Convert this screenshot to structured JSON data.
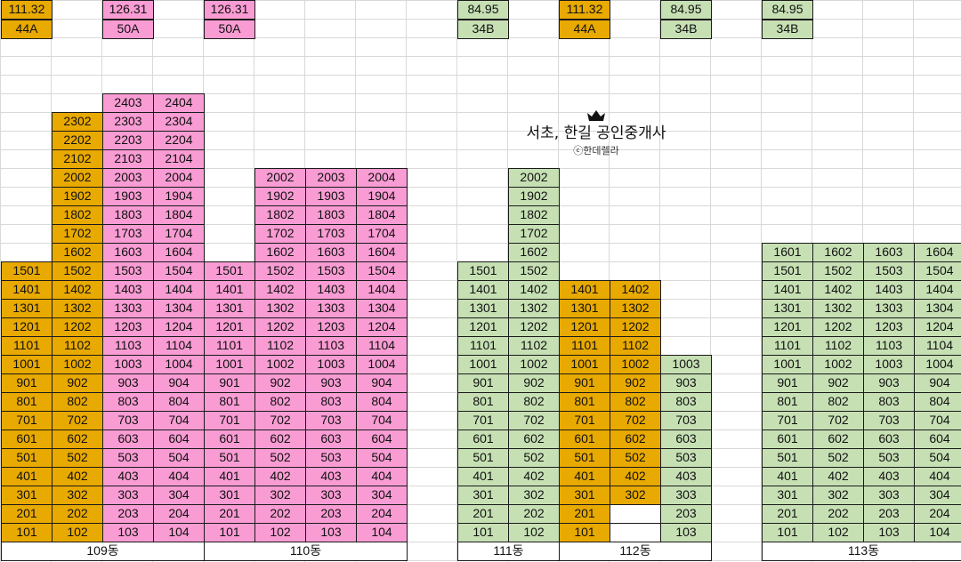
{
  "colors": {
    "orange": "#e8a900",
    "pink": "#f99cd4",
    "green": "#c6e0b4",
    "grid_line": "#d9d9d9",
    "border": "#1a1a1a"
  },
  "type_headers": [
    {
      "area": "111.32",
      "type": "44A",
      "color": "orange"
    },
    {
      "area": "126.31",
      "type": "50A",
      "color": "pink"
    },
    {
      "area": "126.31",
      "type": "50A",
      "color": "pink"
    },
    {
      "area": "84.95",
      "type": "34B",
      "color": "green"
    },
    {
      "area": "111.32",
      "type": "44A",
      "color": "orange"
    },
    {
      "area": "84.95",
      "type": "34B",
      "color": "green"
    },
    {
      "area": "84.95",
      "type": "34B",
      "color": "green"
    }
  ],
  "logo": {
    "crown_icon": "crown-icon",
    "title": "서초, 한길 공인중개사",
    "subtitle": "ⓒ한데렐라"
  },
  "buildings": [
    {
      "label": "109동",
      "columns": [
        {
          "units": [
            "101",
            "201",
            "301",
            "401",
            "501",
            "601",
            "701",
            "801",
            "901",
            "1001",
            "1101",
            "1201",
            "1301",
            "1401",
            "1501"
          ],
          "colors": [
            "orange"
          ]
        },
        {
          "units": [
            "102",
            "202",
            "302",
            "402",
            "502",
            "602",
            "702",
            "802",
            "902",
            "1002",
            "1102",
            "1202",
            "1302",
            "1402",
            "1502",
            "1602",
            "1702",
            "1802",
            "1902",
            "2002",
            "2102",
            "2202",
            "2302"
          ],
          "colors": [
            "orange"
          ]
        },
        {
          "units": [
            "103",
            "203",
            "303",
            "403",
            "503",
            "603",
            "703",
            "803",
            "903",
            "1003",
            "1103",
            "1203",
            "1303",
            "1403",
            "1503",
            "1603",
            "1703",
            "1803",
            "1903",
            "2003",
            "2103",
            "2203",
            "2303",
            "2403"
          ],
          "colors": [
            "pink"
          ]
        },
        {
          "units": [
            "104",
            "204",
            "304",
            "404",
            "504",
            "604",
            "704",
            "804",
            "904",
            "1004",
            "1104",
            "1204",
            "1304",
            "1404",
            "1504",
            "1604",
            "1704",
            "1804",
            "1904",
            "2004",
            "2104",
            "2204",
            "2304",
            "2404"
          ],
          "colors": [
            "pink"
          ]
        }
      ]
    },
    {
      "label": "110동",
      "columns": [
        {
          "units": [
            "101",
            "201",
            "301",
            "401",
            "501",
            "601",
            "701",
            "801",
            "901",
            "1001",
            "1101",
            "1201",
            "1301",
            "1401",
            "1501"
          ],
          "colors": [
            "pink"
          ]
        },
        {
          "units": [
            "102",
            "202",
            "302",
            "402",
            "502",
            "602",
            "702",
            "802",
            "902",
            "1002",
            "1102",
            "1202",
            "1302",
            "1402",
            "1502",
            "1602",
            "1702",
            "1802",
            "1902",
            "2002"
          ],
          "colors": [
            "pink"
          ]
        },
        {
          "units": [
            "103",
            "203",
            "303",
            "403",
            "503",
            "603",
            "703",
            "803",
            "903",
            "1003",
            "1103",
            "1203",
            "1303",
            "1403",
            "1503",
            "1603",
            "1703",
            "1803",
            "1903",
            "2003"
          ],
          "colors": [
            "pink"
          ]
        },
        {
          "units": [
            "104",
            "204",
            "304",
            "404",
            "504",
            "604",
            "704",
            "804",
            "904",
            "1004",
            "1104",
            "1204",
            "1304",
            "1404",
            "1504",
            "1604",
            "1704",
            "1804",
            "1904",
            "2004"
          ],
          "colors": [
            "pink"
          ]
        }
      ]
    },
    {
      "label": "111동",
      "columns": [
        {
          "units": [
            "101",
            "201",
            "301",
            "401",
            "501",
            "601",
            "701",
            "801",
            "901",
            "1001",
            "1101",
            "1201",
            "1301",
            "1401",
            "1501"
          ],
          "colors": [
            "green"
          ]
        },
        {
          "units": [
            "102",
            "202",
            "302",
            "402",
            "502",
            "602",
            "702",
            "802",
            "902",
            "1002",
            "1102",
            "1202",
            "1302",
            "1402",
            "1502",
            "1602",
            "1702",
            "1802",
            "1902",
            "2002"
          ],
          "colors": [
            "green"
          ]
        }
      ]
    },
    {
      "label": "112동",
      "columns": [
        {
          "units": [
            "101",
            "201",
            "301",
            "401",
            "501",
            "601",
            "701",
            "801",
            "901",
            "1001",
            "1101",
            "1201",
            "1301",
            "1401"
          ],
          "colors": [
            "orange"
          ]
        },
        {
          "units": [
            "",
            "",
            "302",
            "402",
            "502",
            "602",
            "702",
            "802",
            "902",
            "1002",
            "1102",
            "1202",
            "1302",
            "1402"
          ],
          "colors": [
            "white",
            "white",
            "orange"
          ]
        },
        {
          "units": [
            "103",
            "203",
            "303",
            "403",
            "503",
            "603",
            "703",
            "803",
            "903",
            "1003"
          ],
          "colors": [
            "green"
          ]
        }
      ]
    },
    {
      "label": "113동",
      "columns": [
        {
          "units": [
            "101",
            "201",
            "301",
            "401",
            "501",
            "601",
            "701",
            "801",
            "901",
            "1001",
            "1101",
            "1201",
            "1301",
            "1401",
            "1501",
            "1601"
          ],
          "colors": [
            "green"
          ]
        },
        {
          "units": [
            "102",
            "202",
            "302",
            "402",
            "502",
            "602",
            "702",
            "802",
            "902",
            "1002",
            "1102",
            "1202",
            "1302",
            "1402",
            "1502",
            "1602"
          ],
          "colors": [
            "green"
          ]
        },
        {
          "units": [
            "103",
            "203",
            "303",
            "403",
            "503",
            "603",
            "703",
            "803",
            "903",
            "1003",
            "1103",
            "1203",
            "1303",
            "1403",
            "1503",
            "1603"
          ],
          "colors": [
            "green"
          ]
        },
        {
          "units": [
            "104",
            "204",
            "304",
            "404",
            "504",
            "604",
            "704",
            "804",
            "904",
            "1004",
            "1104",
            "1204",
            "1304",
            "1404",
            "1504",
            "1604"
          ],
          "colors": [
            "green"
          ]
        }
      ]
    }
  ]
}
